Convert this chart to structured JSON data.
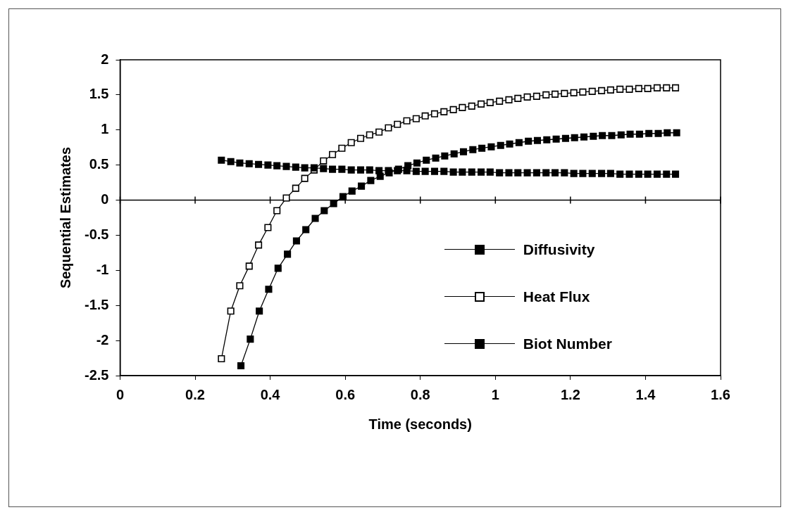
{
  "chart_data": {
    "type": "line",
    "xlabel": "Time (seconds)",
    "ylabel": "Sequential Estimates",
    "xlim": [
      0,
      1.6
    ],
    "xticks": [
      0,
      0.2,
      0.4,
      0.6,
      0.8,
      1,
      1.2,
      1.4,
      1.6
    ],
    "ylim": [
      -2.5,
      2
    ],
    "yticks": [
      -2.5,
      -2,
      -1.5,
      -1,
      -0.5,
      0,
      0.5,
      1,
      1.5,
      2
    ],
    "grid": false,
    "legend": "right",
    "marker": "square",
    "line_style": "solid",
    "ref_lines": [
      {
        "axis": "y",
        "value": 0,
        "color": "#000000"
      }
    ],
    "series": [
      {
        "name": "Diffusivity",
        "color": "#000000",
        "x": [
          0.27,
          0.295,
          0.319,
          0.344,
          0.369,
          0.394,
          0.418,
          0.443,
          0.468,
          0.492,
          0.517,
          0.542,
          0.566,
          0.591,
          0.616,
          0.641,
          0.665,
          0.69,
          0.715,
          0.739,
          0.764,
          0.789,
          0.813,
          0.838,
          0.863,
          0.888,
          0.912,
          0.937,
          0.962,
          0.986,
          1.011,
          1.036,
          1.06,
          1.085,
          1.11,
          1.135,
          1.159,
          1.184,
          1.209,
          1.233,
          1.258,
          1.283,
          1.307,
          1.332,
          1.357,
          1.382,
          1.406,
          1.431,
          1.456,
          1.48
        ],
        "values": [
          0.57,
          0.55,
          0.53,
          0.52,
          0.51,
          0.5,
          0.49,
          0.48,
          0.47,
          0.46,
          0.46,
          0.45,
          0.44,
          0.44,
          0.43,
          0.43,
          0.43,
          0.42,
          0.42,
          0.42,
          0.42,
          0.41,
          0.41,
          0.41,
          0.41,
          0.4,
          0.4,
          0.4,
          0.4,
          0.4,
          0.39,
          0.39,
          0.39,
          0.39,
          0.39,
          0.39,
          0.39,
          0.39,
          0.38,
          0.38,
          0.38,
          0.38,
          0.38,
          0.37,
          0.37,
          0.37,
          0.37,
          0.37,
          0.37,
          0.37
        ]
      },
      {
        "name": "Heat Flux",
        "color": "#ffffff",
        "x": [
          0.27,
          0.295,
          0.319,
          0.344,
          0.369,
          0.394,
          0.418,
          0.443,
          0.468,
          0.492,
          0.517,
          0.542,
          0.566,
          0.591,
          0.616,
          0.641,
          0.665,
          0.69,
          0.715,
          0.739,
          0.764,
          0.789,
          0.813,
          0.838,
          0.863,
          0.888,
          0.912,
          0.937,
          0.962,
          0.986,
          1.011,
          1.036,
          1.06,
          1.085,
          1.11,
          1.135,
          1.159,
          1.184,
          1.209,
          1.233,
          1.258,
          1.283,
          1.307,
          1.332,
          1.357,
          1.382,
          1.406,
          1.431,
          1.456,
          1.48
        ],
        "values": [
          -2.26,
          -1.58,
          -1.22,
          -0.94,
          -0.64,
          -0.39,
          -0.15,
          0.03,
          0.17,
          0.31,
          0.43,
          0.56,
          0.65,
          0.74,
          0.82,
          0.88,
          0.93,
          0.97,
          1.03,
          1.08,
          1.13,
          1.16,
          1.2,
          1.23,
          1.26,
          1.29,
          1.32,
          1.34,
          1.37,
          1.39,
          1.41,
          1.43,
          1.45,
          1.47,
          1.48,
          1.5,
          1.51,
          1.52,
          1.53,
          1.54,
          1.55,
          1.56,
          1.57,
          1.58,
          1.58,
          1.59,
          1.59,
          1.6,
          1.6,
          1.6
        ]
      },
      {
        "name": "Biot Number",
        "color": "#000000",
        "x": [
          0.322,
          0.347,
          0.371,
          0.396,
          0.421,
          0.446,
          0.47,
          0.495,
          0.52,
          0.544,
          0.569,
          0.594,
          0.618,
          0.643,
          0.668,
          0.693,
          0.717,
          0.742,
          0.767,
          0.791,
          0.816,
          0.841,
          0.865,
          0.89,
          0.915,
          0.94,
          0.964,
          0.989,
          1.014,
          1.038,
          1.063,
          1.088,
          1.112,
          1.137,
          1.162,
          1.187,
          1.211,
          1.236,
          1.261,
          1.285,
          1.31,
          1.335,
          1.359,
          1.384,
          1.409,
          1.434,
          1.458,
          1.483
        ],
        "values": [
          -2.36,
          -1.98,
          -1.58,
          -1.27,
          -0.97,
          -0.77,
          -0.58,
          -0.42,
          -0.26,
          -0.15,
          -0.05,
          0.05,
          0.13,
          0.2,
          0.28,
          0.34,
          0.39,
          0.44,
          0.49,
          0.53,
          0.57,
          0.6,
          0.63,
          0.66,
          0.69,
          0.72,
          0.74,
          0.76,
          0.78,
          0.8,
          0.82,
          0.84,
          0.85,
          0.86,
          0.87,
          0.88,
          0.89,
          0.9,
          0.91,
          0.92,
          0.92,
          0.93,
          0.94,
          0.94,
          0.95,
          0.95,
          0.96,
          0.96
        ]
      }
    ]
  }
}
